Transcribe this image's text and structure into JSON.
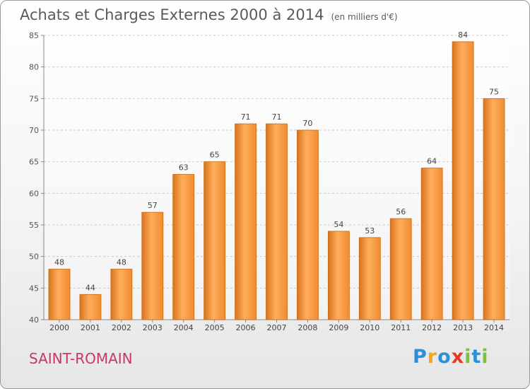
{
  "chart_data": {
    "type": "bar",
    "title": "Achats et Charges Externes 2000 à 2014",
    "subtitle": "(en milliers d'€)",
    "categories": [
      "2000",
      "2001",
      "2002",
      "2003",
      "2004",
      "2005",
      "2006",
      "2007",
      "2008",
      "2009",
      "2010",
      "2011",
      "2012",
      "2013",
      "2014"
    ],
    "values": [
      48,
      44,
      48,
      57,
      63,
      65,
      71,
      71,
      70,
      54,
      53,
      56,
      64,
      84,
      75
    ],
    "ylim": [
      40,
      85
    ],
    "yticks": [
      40,
      45,
      50,
      55,
      60,
      65,
      70,
      75,
      80,
      85
    ],
    "grid": true,
    "bar_color": "#f08c30",
    "bar_color_dark": "#d9741c",
    "bar_color_light": "#ffad5c"
  },
  "place": "SAINT-ROMAIN",
  "logo": {
    "letters": [
      "P",
      "r",
      "o",
      "x",
      "i",
      "t",
      "i"
    ],
    "colors": [
      "#2d8fd5",
      "#f2a51a",
      "#2d8fd5",
      "#e23b2e",
      "#7bc143",
      "#2d8fd5",
      "#7bc143"
    ]
  }
}
